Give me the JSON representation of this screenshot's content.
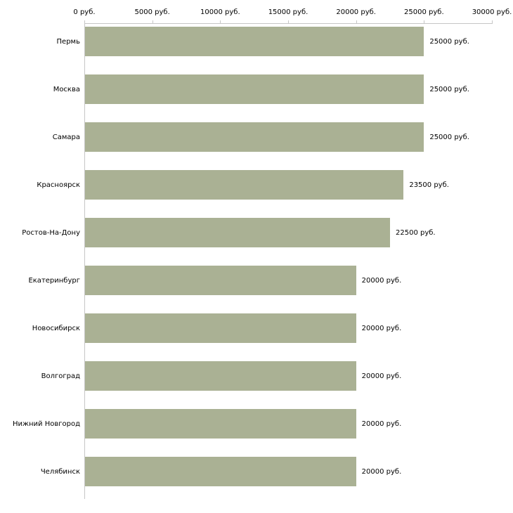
{
  "chart_data": {
    "type": "bar",
    "orientation": "horizontal",
    "title": "",
    "xlabel": "",
    "ylabel": "",
    "categories": [
      "Пермь",
      "Москва",
      "Самара",
      "Красноярск",
      "Ростов-На-Дону",
      "Екатеринбург",
      "Новосибирск",
      "Волгоград",
      "Нижний Новгород",
      "Челябинск"
    ],
    "values": [
      25000,
      25000,
      25000,
      23500,
      22500,
      20000,
      20000,
      20000,
      20000,
      20000
    ],
    "value_labels": [
      "25000 руб.",
      "25000 руб.",
      "25000 руб.",
      "23500 руб.",
      "22500 руб.",
      "20000 руб.",
      "20000 руб.",
      "20000 руб.",
      "20000 руб.",
      "20000 руб."
    ],
    "x_ticks": [
      0,
      5000,
      10000,
      15000,
      20000,
      25000,
      30000
    ],
    "x_tick_labels": [
      "0 руб.",
      "5000 руб.",
      "10000 руб.",
      "15000 руб.",
      "20000 руб.",
      "25000 руб.",
      "30000 руб."
    ],
    "xlim": [
      0,
      30000
    ],
    "grid": false,
    "legend": false,
    "bar_color": "#aab194",
    "axis_color": "#c6c6c6",
    "text_color": "#000000"
  }
}
